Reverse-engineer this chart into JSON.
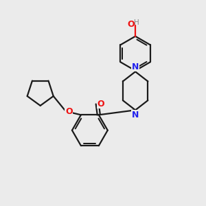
{
  "background_color": "#ebebeb",
  "bond_color": "#1a1a1a",
  "nitrogen_color": "#2020ee",
  "oxygen_color": "#ee1111",
  "hydrogen_color": "#888888",
  "line_width": 1.6,
  "figsize": [
    3.0,
    3.0
  ],
  "dpi": 100,
  "xlim": [
    0,
    10
  ],
  "ylim": [
    0,
    10
  ]
}
